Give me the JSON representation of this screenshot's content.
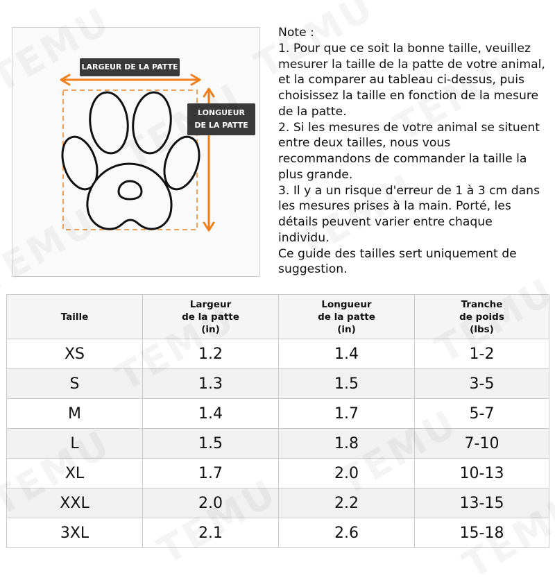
{
  "diagram": {
    "width_label": "LARGEUR DE LA PATTE",
    "length_label": "LONGUEUR\nDE LA PATTE",
    "accent_color": "#f07f1c",
    "label_bg_color": "#3a3a3a"
  },
  "notes": {
    "lines": [
      "Note :",
      "1. Pour que ce soit la bonne taille, veuillez",
      "mesurer la taille de la patte de votre animal,",
      "et la comparer au tableau ci-dessus, puis",
      "choisissez la taille en fonction de la mesure",
      "de la patte.",
      "2. Si les mesures de votre animal se situent",
      "entre deux tailles, nous vous",
      "recommandons de commander la taille la",
      "plus grande.",
      "3. Il y a un risque d'erreur de 1 à 3 cm dans",
      "les mesures prises à la main. Porté, les",
      "détails peuvent varier entre chaque",
      "individu.",
      "Ce guide des tailles sert uniquement de",
      "suggestion."
    ]
  },
  "table": {
    "headers": [
      "Taille",
      "Largeur\nde la patte\n(in)",
      "Longueur\nde la patte\n(in)",
      "Tranche\nde poids\n(lbs)"
    ],
    "rows": [
      [
        "XS",
        "1.2",
        "1.4",
        "1-2"
      ],
      [
        "S",
        "1.3",
        "1.5",
        "3-5"
      ],
      [
        "M",
        "1.4",
        "1.7",
        "5-7"
      ],
      [
        "L",
        "1.5",
        "1.8",
        "7-10"
      ],
      [
        "XL",
        "1.7",
        "2.0",
        "10-13"
      ],
      [
        "XXL",
        "2.0",
        "2.2",
        "13-15"
      ],
      [
        "3XL",
        "2.1",
        "2.6",
        "15-18"
      ]
    ]
  },
  "watermark": "TEMU"
}
